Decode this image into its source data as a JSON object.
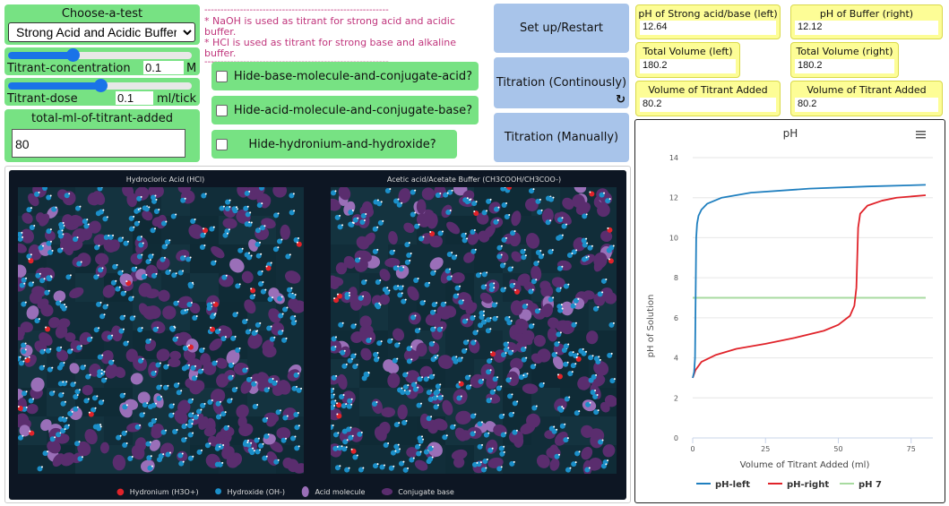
{
  "controls": {
    "choose_test_label": "Choose-a-test",
    "test_selected": "Strong Acid and Acidic Buffer",
    "concentration": {
      "label": "Titrant-concentration",
      "value": "0.1",
      "unit": "M",
      "slider_fraction": 0.35
    },
    "dose": {
      "label": "Titrant-dose",
      "value": "0.1",
      "unit": "ml/tick",
      "slider_fraction": 0.5
    },
    "total_label": "total-ml-of-titrant-added",
    "total_value": "80"
  },
  "notes": {
    "dashes": "---------------------------------------------------------",
    "line1": "* NaOH is used as titrant for strong acid and acidic buffer.",
    "line2": "* HCl is used as titrant for strong base and alkaline buffer."
  },
  "checkboxes": [
    {
      "label": "Hide-base-molecule-and-conjugate-acid?",
      "checked": false
    },
    {
      "label": "Hide-acid-molecule-and-conjugate-base?",
      "checked": false
    },
    {
      "label": "Hide-hydronium-and-hydroxide?",
      "checked": false
    }
  ],
  "buttons": {
    "setup": "Set up/Restart",
    "continuous": "Titration (Continously)",
    "manual": "Titration (Manually)"
  },
  "readouts": [
    {
      "label": "pH of Strong acid/base (left)",
      "value": "12.64"
    },
    {
      "label": "pH of Buffer (right)",
      "value": "12.12"
    },
    {
      "label": "Total Volume (left)",
      "value": "180.2"
    },
    {
      "label": "Total Volume (right)",
      "value": "180.2"
    },
    {
      "label": "Volume of Titrant Added (left)",
      "value": "80.2"
    },
    {
      "label": "Volume of Titrant Added (right)",
      "value": "80.2"
    }
  ],
  "simulation": {
    "left_title": "Hydrocloric Acid (HCl)",
    "right_title": "Acetic acid/Acetate Buffer (CH3COOH/CH3COO-)",
    "legend": [
      "Hydronium (H3O+)",
      "Hydroxide (OH-)",
      "Acid molecule",
      "Conjugate base"
    ],
    "colors": {
      "hydronium": "#e0232a",
      "hydroxide": "#1b8fc9",
      "acid": "#9a6fb8",
      "conjugate": "#5a2d6e",
      "background": "#0d1623",
      "cell": "#14333f"
    }
  },
  "chart_data": {
    "type": "line",
    "title": "pH",
    "xlabel": "Volume of Titrant Added (ml)",
    "ylabel": "pH of Solution",
    "xlim": [
      0,
      80
    ],
    "ylim": [
      0,
      14
    ],
    "xticks": [
      "0",
      "25",
      "50",
      "75"
    ],
    "yticks": [
      "0",
      "2",
      "4",
      "6",
      "8",
      "10",
      "12",
      "14"
    ],
    "grid": true,
    "legend_position": "bottom",
    "series": [
      {
        "name": "pH-left",
        "color": "#1f7fbf",
        "points": [
          [
            0,
            3.0
          ],
          [
            0.5,
            3.3
          ],
          [
            0.8,
            4.0
          ],
          [
            1,
            7.0
          ],
          [
            1.2,
            10.0
          ],
          [
            1.5,
            10.7
          ],
          [
            2,
            11.1
          ],
          [
            3,
            11.4
          ],
          [
            5,
            11.7
          ],
          [
            10,
            12.0
          ],
          [
            20,
            12.25
          ],
          [
            40,
            12.45
          ],
          [
            60,
            12.56
          ],
          [
            80,
            12.64
          ]
        ]
      },
      {
        "name": "pH-right",
        "color": "#e0232a",
        "points": [
          [
            0,
            3.0
          ],
          [
            1,
            3.4
          ],
          [
            3,
            3.8
          ],
          [
            8,
            4.15
          ],
          [
            15,
            4.45
          ],
          [
            25,
            4.7
          ],
          [
            35,
            5.0
          ],
          [
            45,
            5.35
          ],
          [
            50,
            5.65
          ],
          [
            54,
            6.1
          ],
          [
            55.5,
            6.6
          ],
          [
            56.2,
            7.5
          ],
          [
            56.5,
            9.0
          ],
          [
            56.8,
            10.5
          ],
          [
            57.5,
            11.2
          ],
          [
            60,
            11.6
          ],
          [
            65,
            11.85
          ],
          [
            70,
            12.0
          ],
          [
            80,
            12.12
          ]
        ]
      },
      {
        "name": "pH 7",
        "color": "#a8dba0",
        "points": [
          [
            0,
            7
          ],
          [
            80,
            7
          ]
        ]
      }
    ]
  }
}
